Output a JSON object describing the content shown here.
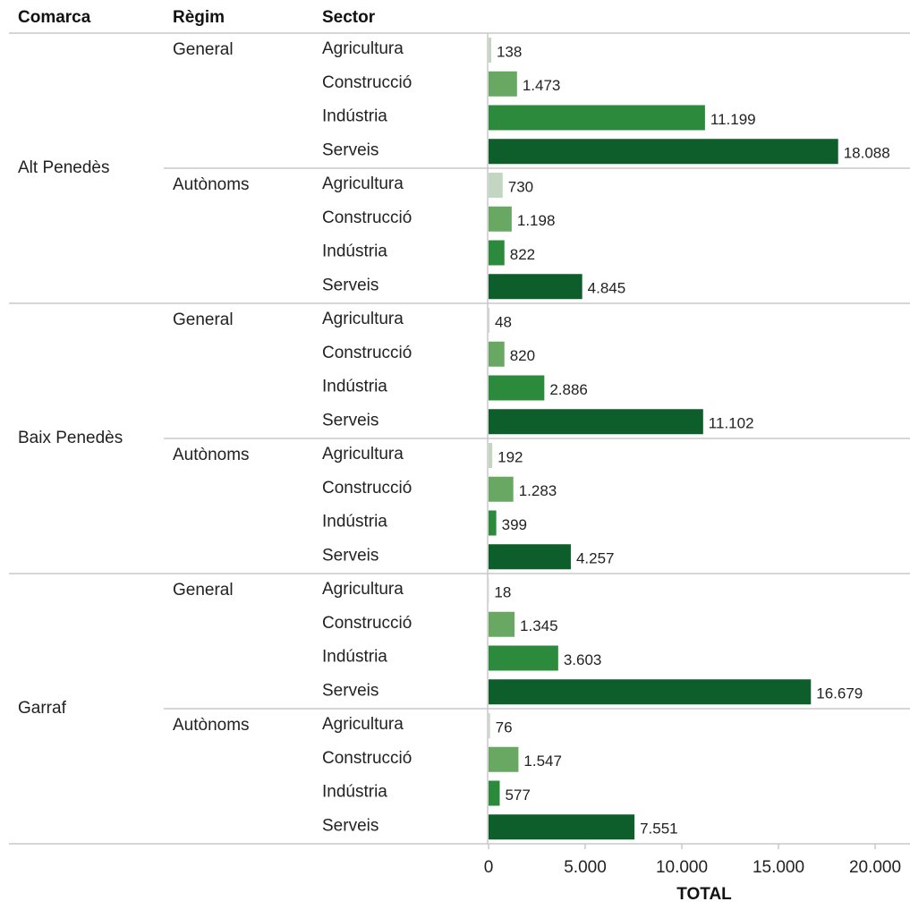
{
  "chart_data": {
    "type": "bar",
    "headers": [
      "Comarca",
      "Règim",
      "Sector"
    ],
    "x_label": "TOTAL",
    "comarques": [
      "Alt Penedès",
      "Baix Penedès",
      "Garraf"
    ],
    "regims": [
      "General",
      "Autònoms"
    ],
    "series": [
      {
        "name": "Agricultura",
        "color": "#c2d6c2",
        "values": [
          138,
          730,
          48,
          192,
          18,
          76
        ],
        "value_labels": [
          "138",
          "730",
          "48",
          "192",
          "18",
          "76"
        ]
      },
      {
        "name": "Construcció",
        "color": "#69a862",
        "values": [
          1473,
          1198,
          820,
          1283,
          1345,
          1547
        ],
        "value_labels": [
          "1.473",
          "1.198",
          "820",
          "1.283",
          "1.345",
          "1.547"
        ]
      },
      {
        "name": "Indústria",
        "color": "#2c8a3d",
        "values": [
          11199,
          822,
          2886,
          399,
          3603,
          577
        ],
        "value_labels": [
          "11.199",
          "822",
          "2.886",
          "399",
          "3.603",
          "577"
        ]
      },
      {
        "name": "Serveis",
        "color": "#0d5e2b",
        "values": [
          18088,
          4845,
          11102,
          4257,
          16679,
          7551
        ],
        "value_labels": [
          "18.088",
          "4.845",
          "11.102",
          "4.257",
          "16.679",
          "7.551"
        ]
      }
    ],
    "xlim": [
      0,
      20000
    ],
    "xticks": [
      0,
      {
        "value": 5000,
        "label": "5.000"
      },
      {
        "value": 10000,
        "label": "10.000"
      },
      {
        "value": 15000,
        "label": "15.000"
      },
      {
        "value": 20000,
        "label": "20.000"
      }
    ]
  }
}
